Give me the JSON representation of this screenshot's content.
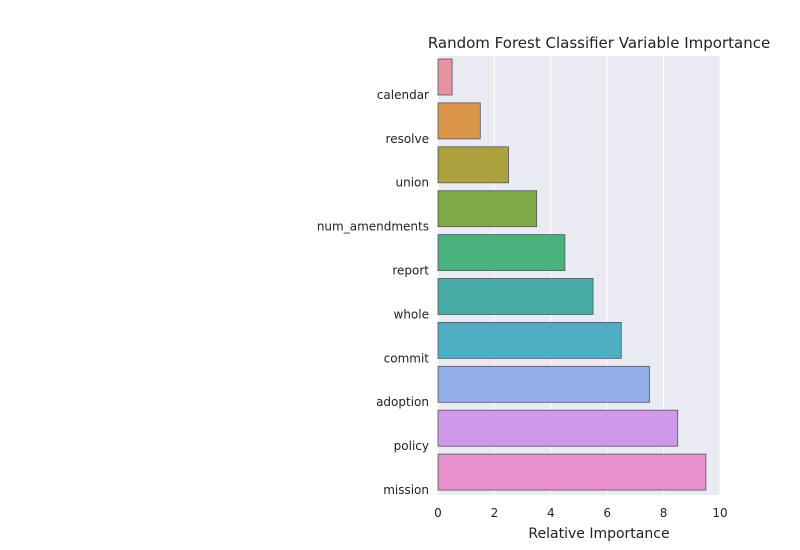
{
  "chart_data": {
    "type": "bar",
    "orientation": "horizontal",
    "title": "Random Forest Classifier Variable Importance",
    "xlabel": "Relative Importance",
    "ylabel": "",
    "xlim": [
      0,
      10
    ],
    "xticks": [
      0,
      2,
      4,
      6,
      8,
      10
    ],
    "grid": true,
    "categories": [
      "calendar",
      "resolve",
      "union",
      "num_amendments",
      "report",
      "whole",
      "commit",
      "adoption",
      "policy",
      "mission"
    ],
    "values": [
      0.5,
      1.5,
      2.5,
      3.5,
      4.5,
      5.5,
      6.5,
      7.5,
      8.5,
      9.5
    ],
    "colors": [
      "#e8929f",
      "#d99549",
      "#aca03f",
      "#7fa944",
      "#48b17c",
      "#48aba5",
      "#4daec4",
      "#93aee7",
      "#cf98e8",
      "#e890cc"
    ],
    "background": "#eaeaf2"
  }
}
